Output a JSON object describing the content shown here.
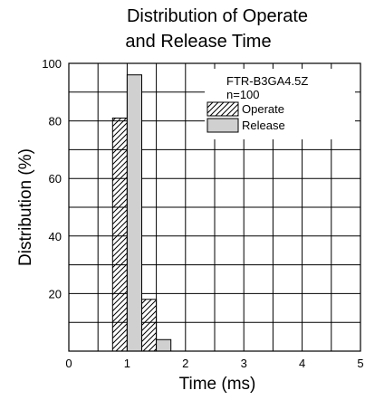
{
  "chart_data": {
    "type": "bar",
    "title_lines": [
      "Distribution of Operate",
      "and Release Time"
    ],
    "xlabel": "Time (ms)",
    "ylabel": "Distribution (%)",
    "xlim": [
      0,
      5
    ],
    "ylim": [
      0,
      100
    ],
    "x_ticks": [
      "0",
      "1",
      "2",
      "3",
      "4",
      "5"
    ],
    "y_ticks": [
      "20",
      "40",
      "60",
      "80",
      "100"
    ],
    "grid": true,
    "legend_position": "top-right",
    "annotation_lines": [
      "FTR-B3GA4.5Z",
      "n=100"
    ],
    "bin_width": 0.25,
    "series": [
      {
        "name": "Operate",
        "pattern": "hatched",
        "bins": [
          {
            "x_start": 0.75,
            "x_end": 1.0,
            "value": 81
          },
          {
            "x_start": 1.25,
            "x_end": 1.5,
            "value": 18
          }
        ]
      },
      {
        "name": "Release",
        "pattern": "gray",
        "color": "#d0d0d0",
        "bins": [
          {
            "x_start": 1.0,
            "x_end": 1.25,
            "value": 96
          },
          {
            "x_start": 1.5,
            "x_end": 1.75,
            "value": 4
          }
        ]
      }
    ]
  }
}
